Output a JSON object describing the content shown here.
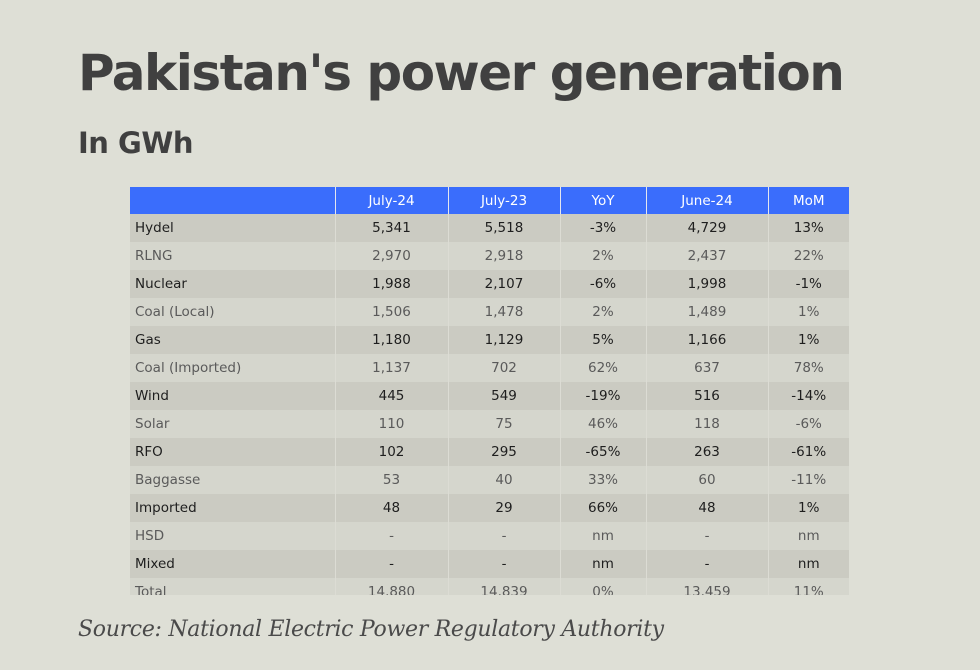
{
  "title": "Pakistan's power generation",
  "subtitle": "In GWh",
  "table": {
    "headers": [
      "",
      "July-24",
      "July-23",
      "YoY",
      "June-24",
      "MoM"
    ],
    "rows": [
      [
        "Hydel",
        "5,341",
        "5,518",
        "-3%",
        "4,729",
        "13%"
      ],
      [
        "RLNG",
        "2,970",
        "2,918",
        "2%",
        "2,437",
        "22%"
      ],
      [
        "Nuclear",
        "1,988",
        "2,107",
        "-6%",
        "1,998",
        "-1%"
      ],
      [
        "Coal (Local)",
        "1,506",
        "1,478",
        "2%",
        "1,489",
        "1%"
      ],
      [
        "Gas",
        "1,180",
        "1,129",
        "5%",
        "1,166",
        "1%"
      ],
      [
        "Coal (Imported)",
        "1,137",
        "702",
        "62%",
        "637",
        "78%"
      ],
      [
        "Wind",
        "445",
        "549",
        "-19%",
        "516",
        "-14%"
      ],
      [
        "Solar",
        "110",
        "75",
        "46%",
        "118",
        "-6%"
      ],
      [
        "RFO",
        "102",
        "295",
        "-65%",
        "263",
        "-61%"
      ],
      [
        "Baggasse",
        "53",
        "40",
        "33%",
        "60",
        "-11%"
      ],
      [
        "Imported",
        "48",
        "29",
        "66%",
        "48",
        "1%"
      ],
      [
        "HSD",
        "-",
        "-",
        "nm",
        "-",
        "nm"
      ],
      [
        "Mixed",
        "-",
        "-",
        "nm",
        "-",
        "nm"
      ],
      [
        "Total",
        "14,880",
        "14,839",
        "0%",
        "13,459",
        "11%"
      ]
    ]
  },
  "source": "Source: National Electric Power Regulatory Authority",
  "colors": {
    "background": "#dedfd6",
    "header": "#3a6dfc",
    "row_dark": "#cbcbc2",
    "row_light": "#d5d6cd"
  }
}
